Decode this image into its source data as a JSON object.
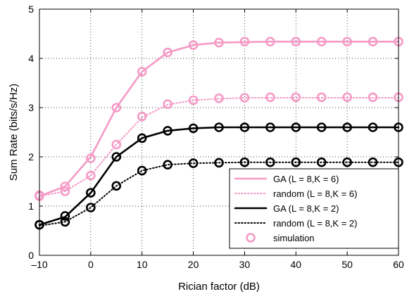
{
  "chart_data": {
    "type": "line",
    "title": "",
    "xlabel": "Rician factor (dB)",
    "ylabel": "Sum Rate (bits/s/Hz)",
    "xlim": [
      -10,
      60
    ],
    "ylim": [
      0,
      5
    ],
    "xticks": [
      -10,
      0,
      10,
      20,
      30,
      40,
      50,
      60
    ],
    "yticks": [
      0,
      1,
      2,
      3,
      4,
      5
    ],
    "xtick_labels": [
      "–10",
      "0",
      "10",
      "20",
      "30",
      "40",
      "50",
      "60"
    ],
    "ytick_labels": [
      "0",
      "1",
      "2",
      "3",
      "4",
      "5"
    ],
    "grid": true,
    "legend_position": "bottom-right",
    "x": [
      -10,
      -5,
      0,
      5,
      10,
      15,
      20,
      25,
      30,
      35,
      40,
      45,
      50,
      55,
      60
    ],
    "series": [
      {
        "name": "GA (L = 8,K = 6)",
        "style": "solid",
        "color": "#f59ac6",
        "values": [
          1.2,
          1.4,
          2.0,
          3.0,
          3.73,
          4.12,
          4.27,
          4.32,
          4.33,
          4.34,
          4.34,
          4.34,
          4.34,
          4.34,
          4.34
        ]
      },
      {
        "name": "random (L = 8,K = 6)",
        "style": "dotted",
        "color": "#f59ac6",
        "values": [
          1.2,
          1.3,
          1.62,
          2.25,
          2.8,
          3.06,
          3.15,
          3.18,
          3.2,
          3.2,
          3.2,
          3.2,
          3.2,
          3.2,
          3.2
        ]
      },
      {
        "name": "GA (L = 8,K = 2)",
        "style": "solid",
        "color": "#000000",
        "values": [
          0.62,
          0.78,
          1.27,
          2.0,
          2.38,
          2.53,
          2.58,
          2.6,
          2.6,
          2.6,
          2.6,
          2.6,
          2.6,
          2.6,
          2.6
        ]
      },
      {
        "name": "random (L = 8,K = 2)",
        "style": "dotted",
        "color": "#000000",
        "values": [
          0.6,
          0.68,
          0.97,
          1.41,
          1.72,
          1.84,
          1.87,
          1.88,
          1.89,
          1.89,
          1.89,
          1.89,
          1.89,
          1.89,
          1.89
        ]
      }
    ],
    "simulation": {
      "name": "simulation",
      "marker": "circle",
      "color": "#f59ac6",
      "series": [
        {
          "color": "#f59ac6",
          "values": [
            1.22,
            1.4,
            1.97,
            3.0,
            3.73,
            4.12,
            4.27,
            4.32,
            4.34,
            4.34,
            4.34,
            4.34,
            4.34,
            4.34,
            4.34
          ]
        },
        {
          "color": "#f59ac6",
          "values": [
            1.2,
            1.3,
            1.62,
            2.25,
            2.82,
            3.07,
            3.15,
            3.19,
            3.2,
            3.21,
            3.21,
            3.21,
            3.21,
            3.21,
            3.21
          ]
        },
        {
          "color": "#000000",
          "values": [
            0.62,
            0.8,
            1.27,
            2.0,
            2.38,
            2.53,
            2.58,
            2.6,
            2.6,
            2.6,
            2.6,
            2.6,
            2.6,
            2.6,
            2.6
          ]
        },
        {
          "color": "#000000",
          "values": [
            0.62,
            0.68,
            0.97,
            1.41,
            1.72,
            1.84,
            1.87,
            1.88,
            1.89,
            1.89,
            1.89,
            1.89,
            1.89,
            1.89,
            1.89
          ]
        }
      ]
    }
  }
}
